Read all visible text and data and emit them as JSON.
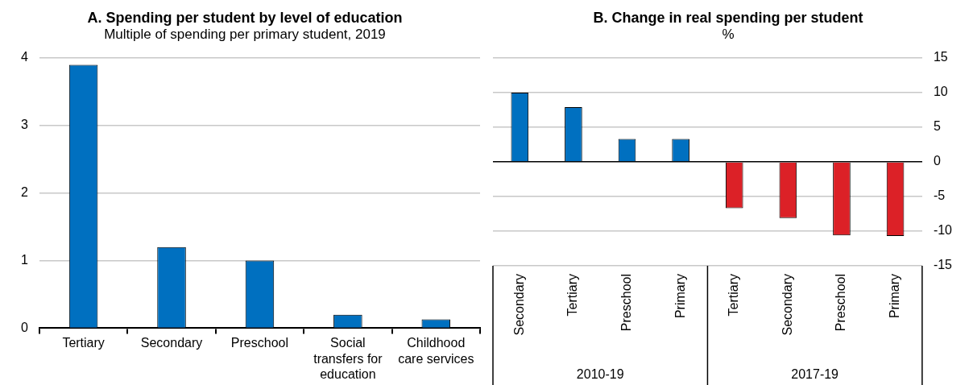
{
  "chart_data": [
    {
      "type": "bar",
      "title": "A. Spending per student by level of education",
      "subtitle": "Multiple of spending per primary student, 2019",
      "categories": [
        "Tertiary",
        "Secondary",
        "Preschool",
        "Social transfers for education",
        "Childhood care services"
      ],
      "series": [
        {
          "color": "#0070c0",
          "values": [
            3.9,
            1.2,
            1.0,
            0.2,
            0.13
          ]
        }
      ],
      "ylim": [
        0,
        4
      ],
      "yticks": [
        0,
        1,
        2,
        3,
        4
      ],
      "grid": "y",
      "legend": false
    },
    {
      "type": "bar",
      "title": "B. Change in real spending per student",
      "subtitle": "%",
      "categories": [
        "Secondary",
        "Tertiary",
        "Preschool",
        "Primary",
        "Tertiary",
        "Secondary",
        "Preschool",
        "Primary"
      ],
      "series": [
        {
          "colors": [
            "#0070c0",
            "#0070c0",
            "#0070c0",
            "#0070c0",
            "#dc2127",
            "#dc2127",
            "#dc2127",
            "#dc2127"
          ],
          "values": [
            10,
            7.9,
            3.3,
            3.3,
            -6.7,
            -8.1,
            -10.6,
            -10.7
          ],
          "axis": "y2"
        }
      ],
      "y2lim": [
        -15,
        15
      ],
      "y2ticks": [
        -15,
        -10,
        -5,
        0,
        5,
        10,
        15
      ],
      "grid": "y",
      "legend": false,
      "annotations": [
        "2010-19",
        "2017-19"
      ]
    }
  ]
}
